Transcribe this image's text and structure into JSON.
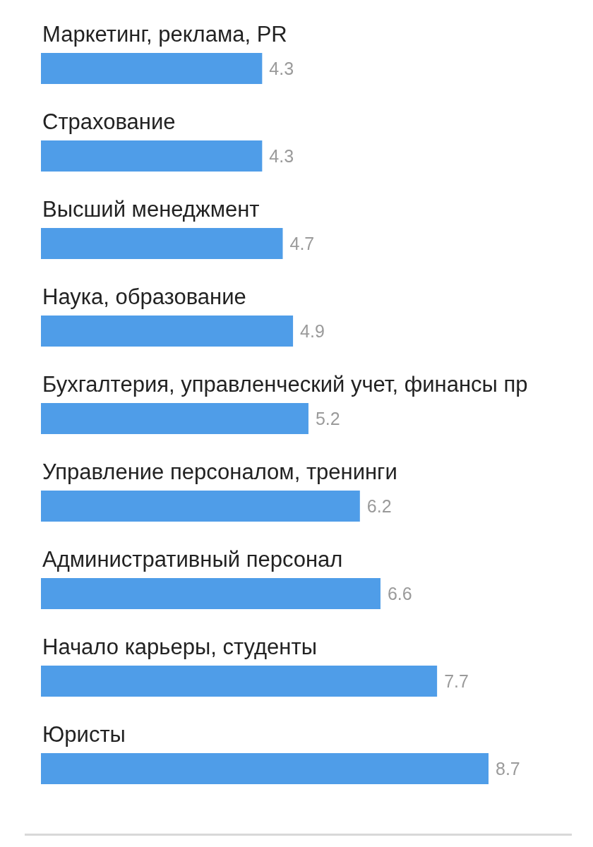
{
  "chart_data": {
    "type": "bar",
    "orientation": "horizontal",
    "categories": [
      "Маркетинг, реклама, PR",
      "Страхование",
      "Высший менеджмент",
      "Наука, образование",
      "Бухгалтерия, управленческий учет, финансы пр",
      "Управление персоналом, тренинги",
      "Административный персонал",
      "Начало карьеры, студенты",
      "Юристы"
    ],
    "values": [
      4.3,
      4.3,
      4.7,
      4.9,
      5.2,
      6.2,
      6.6,
      7.7,
      8.7
    ],
    "data_labels": true,
    "color": "#4f9de8"
  }
}
